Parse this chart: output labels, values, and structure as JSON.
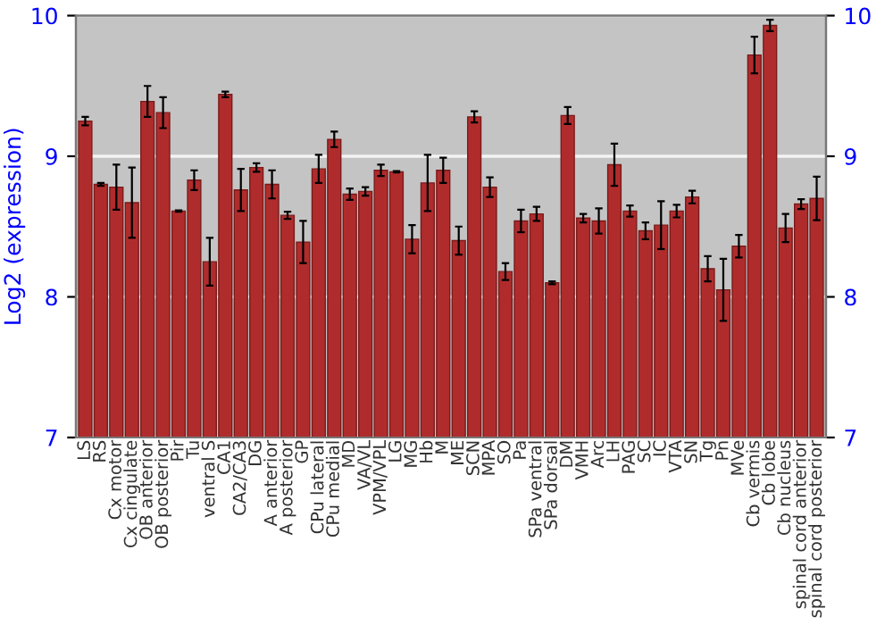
{
  "chart_data": {
    "type": "bar",
    "ylabel": "Log2 (expression)",
    "categories": [
      "LS",
      "RS",
      "Cx motor",
      "Cx cingulate",
      "OB anterior",
      "OB posterior",
      "Pir",
      "Tu",
      "ventral S",
      "CA1",
      "CA2/CA3",
      "DG",
      "A anterior",
      "A posterior",
      "GP",
      "CPu lateral",
      "CPu medial",
      "MD",
      "VA/VL",
      "VPM/VPL",
      "LG",
      "MG",
      "Hb",
      "M",
      "ME",
      "SCN",
      "MPA",
      "SO",
      "Pa",
      "SPa ventral",
      "SPa dorsal",
      "DM",
      "VMH",
      "Arc",
      "LH",
      "PAG",
      "SC",
      "IC",
      "VTA",
      "SN",
      "Tg",
      "Pn",
      "MVe",
      "Cb vermis",
      "Cb lobe",
      "Cb nucleus",
      "spinal cord anterior",
      "spinal cord posterior"
    ],
    "values": [
      9.25,
      8.8,
      8.78,
      8.67,
      9.39,
      9.31,
      8.61,
      8.83,
      8.25,
      9.44,
      8.76,
      8.92,
      8.8,
      8.58,
      8.39,
      8.91,
      9.12,
      8.73,
      8.75,
      8.9,
      8.89,
      8.41,
      8.81,
      8.9,
      8.4,
      9.28,
      8.78,
      8.18,
      8.54,
      8.59,
      8.1,
      9.29,
      8.56,
      8.54,
      8.94,
      8.61,
      8.47,
      8.51,
      8.61,
      8.71,
      8.2,
      8.05,
      8.36,
      9.72,
      9.93,
      8.49,
      8.66,
      8.7
    ],
    "errors": [
      0.03,
      0.01,
      0.16,
      0.25,
      0.11,
      0.11,
      0.005,
      0.07,
      0.17,
      0.02,
      0.15,
      0.03,
      0.1,
      0.025,
      0.15,
      0.1,
      0.055,
      0.04,
      0.03,
      0.04,
      0.005,
      0.1,
      0.2,
      0.09,
      0.1,
      0.04,
      0.07,
      0.06,
      0.08,
      0.05,
      0.01,
      0.06,
      0.03,
      0.09,
      0.15,
      0.04,
      0.06,
      0.17,
      0.045,
      0.045,
      0.09,
      0.22,
      0.08,
      0.13,
      0.04,
      0.1,
      0.035,
      0.155
    ],
    "color": "#b02c2c",
    "ylim": [
      7,
      10
    ],
    "yticks": [
      7,
      8,
      9,
      10
    ],
    "y2lim": [
      7,
      10
    ],
    "y2ticks": [
      7,
      8,
      9,
      10
    ],
    "grid": "y",
    "legend": false
  }
}
